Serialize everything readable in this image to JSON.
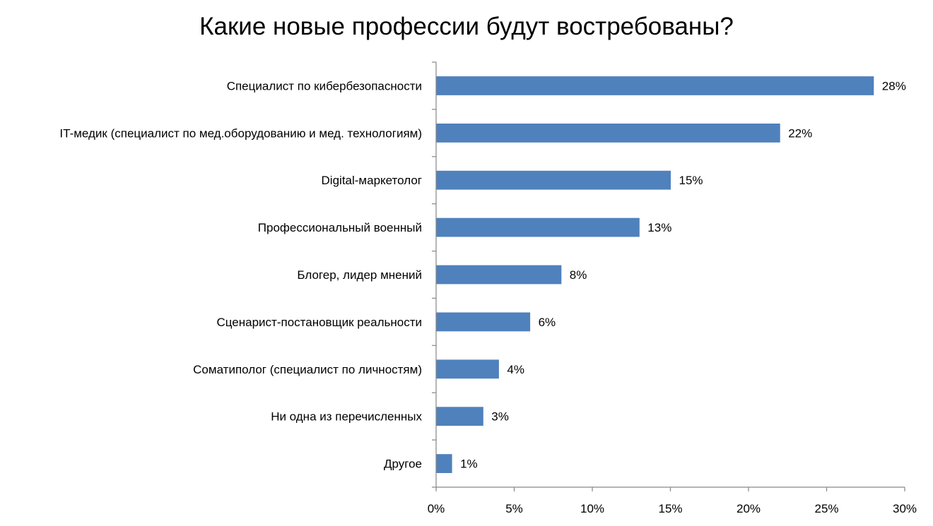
{
  "title": "Какие новые профессии будут востребованы?",
  "colors": {
    "bar": "#4f81bd",
    "axis": "#868686"
  },
  "chart_data": {
    "type": "bar",
    "orientation": "horizontal",
    "title": "Какие новые профессии будут востребованы?",
    "categories": [
      "Специалист по кибербезопасности",
      "IT-медик (специалист по мед.оборудованию и мед. технологиям)",
      "Digital-маркетолог",
      "Профессиональный военный",
      "Блогер, лидер мнений",
      "Сценарист-постановщик реальности",
      "Соматиполог (специалист по личностям)",
      "Ни одна из перечисленных",
      "Другое"
    ],
    "values": [
      28,
      22,
      15,
      13,
      8,
      6,
      4,
      3,
      1
    ],
    "data_labels": [
      "28%",
      "22%",
      "15%",
      "13%",
      "8%",
      "6%",
      "4%",
      "3%",
      "1%"
    ],
    "xlim": [
      0,
      30
    ],
    "x_ticks": [
      0,
      5,
      10,
      15,
      20,
      25,
      30
    ],
    "x_tick_labels": [
      "0%",
      "5%",
      "10%",
      "15%",
      "20%",
      "25%",
      "30%"
    ],
    "unit": "%",
    "grid": false,
    "legend": "none"
  }
}
